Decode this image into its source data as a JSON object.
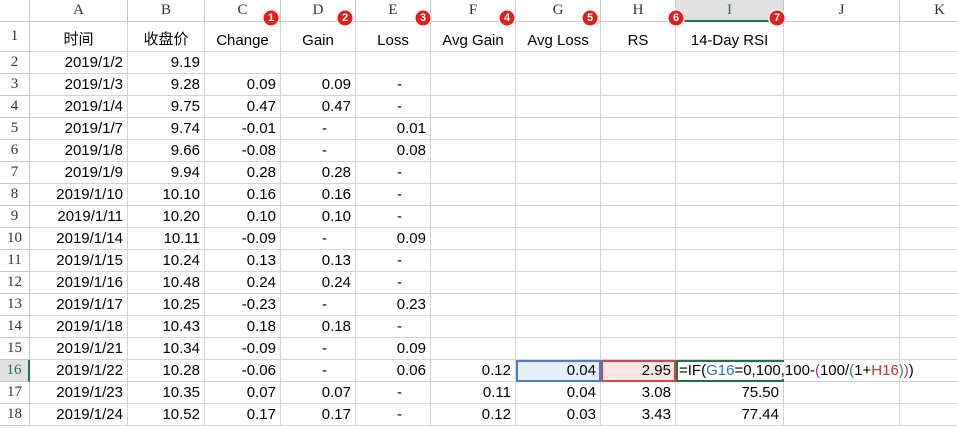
{
  "columns": [
    "A",
    "B",
    "C",
    "D",
    "E",
    "F",
    "G",
    "H",
    "I",
    "J",
    "K"
  ],
  "callouts": [
    "1",
    "2",
    "3",
    "4",
    "5",
    "6",
    "7"
  ],
  "row_numbers": [
    "1",
    "2",
    "3",
    "4",
    "5",
    "6",
    "7",
    "8",
    "9",
    "10",
    "11",
    "12",
    "13",
    "14",
    "15",
    "16",
    "17",
    "18"
  ],
  "header": [
    "时间",
    "收盘价",
    "Change",
    "Gain",
    "Loss",
    "Avg Gain",
    "Avg Loss",
    "RS",
    "14-Day RSI"
  ],
  "rows": [
    [
      "2019/1/2",
      "9.19",
      null,
      null,
      null,
      null,
      null,
      null,
      null
    ],
    [
      "2019/1/3",
      "9.28",
      "0.09",
      "0.09",
      "-",
      null,
      null,
      null,
      null
    ],
    [
      "2019/1/4",
      "9.75",
      "0.47",
      "0.47",
      "-",
      null,
      null,
      null,
      null
    ],
    [
      "2019/1/7",
      "9.74",
      "-0.01",
      "-",
      "0.01",
      null,
      null,
      null,
      null
    ],
    [
      "2019/1/8",
      "9.66",
      "-0.08",
      "-",
      "0.08",
      null,
      null,
      null,
      null
    ],
    [
      "2019/1/9",
      "9.94",
      "0.28",
      "0.28",
      "-",
      null,
      null,
      null,
      null
    ],
    [
      "2019/1/10",
      "10.10",
      "0.16",
      "0.16",
      "-",
      null,
      null,
      null,
      null
    ],
    [
      "2019/1/11",
      "10.20",
      "0.10",
      "0.10",
      "-",
      null,
      null,
      null,
      null
    ],
    [
      "2019/1/14",
      "10.11",
      "-0.09",
      "-",
      "0.09",
      null,
      null,
      null,
      null
    ],
    [
      "2019/1/15",
      "10.24",
      "0.13",
      "0.13",
      "-",
      null,
      null,
      null,
      null
    ],
    [
      "2019/1/16",
      "10.48",
      "0.24",
      "0.24",
      "-",
      null,
      null,
      null,
      null
    ],
    [
      "2019/1/17",
      "10.25",
      "-0.23",
      "-",
      "0.23",
      null,
      null,
      null,
      null
    ],
    [
      "2019/1/18",
      "10.43",
      "0.18",
      "0.18",
      "-",
      null,
      null,
      null,
      null
    ],
    [
      "2019/1/21",
      "10.34",
      "-0.09",
      "-",
      "0.09",
      null,
      null,
      null,
      null
    ],
    [
      "2019/1/22",
      "10.28",
      "-0.06",
      "-",
      "0.06",
      "0.12",
      "0.04",
      "2.95",
      null
    ],
    [
      "2019/1/23",
      "10.35",
      "0.07",
      "0.07",
      "-",
      "0.11",
      "0.04",
      "3.08",
      "75.50"
    ],
    [
      "2019/1/24",
      "10.52",
      "0.17",
      "0.17",
      "-",
      "0.12",
      "0.03",
      "3.43",
      "77.44"
    ]
  ],
  "formula": [
    {
      "text": "=IF(",
      "color": "#000000"
    },
    {
      "text": "G16",
      "color": "#2e6fbf"
    },
    {
      "text": "=0,100,100-",
      "color": "#000000"
    },
    {
      "text": "(",
      "color": "#9b3b9b"
    },
    {
      "text": "100/",
      "color": "#000000"
    },
    {
      "text": "(",
      "color": "#2e8b57"
    },
    {
      "text": "1+",
      "color": "#000000"
    },
    {
      "text": "H16",
      "color": "#c0392b"
    },
    {
      "text": ")",
      "color": "#2e8b57"
    },
    {
      "text": ")",
      "color": "#9b3b9b"
    },
    {
      "text": ")",
      "color": "#000000"
    }
  ]
}
